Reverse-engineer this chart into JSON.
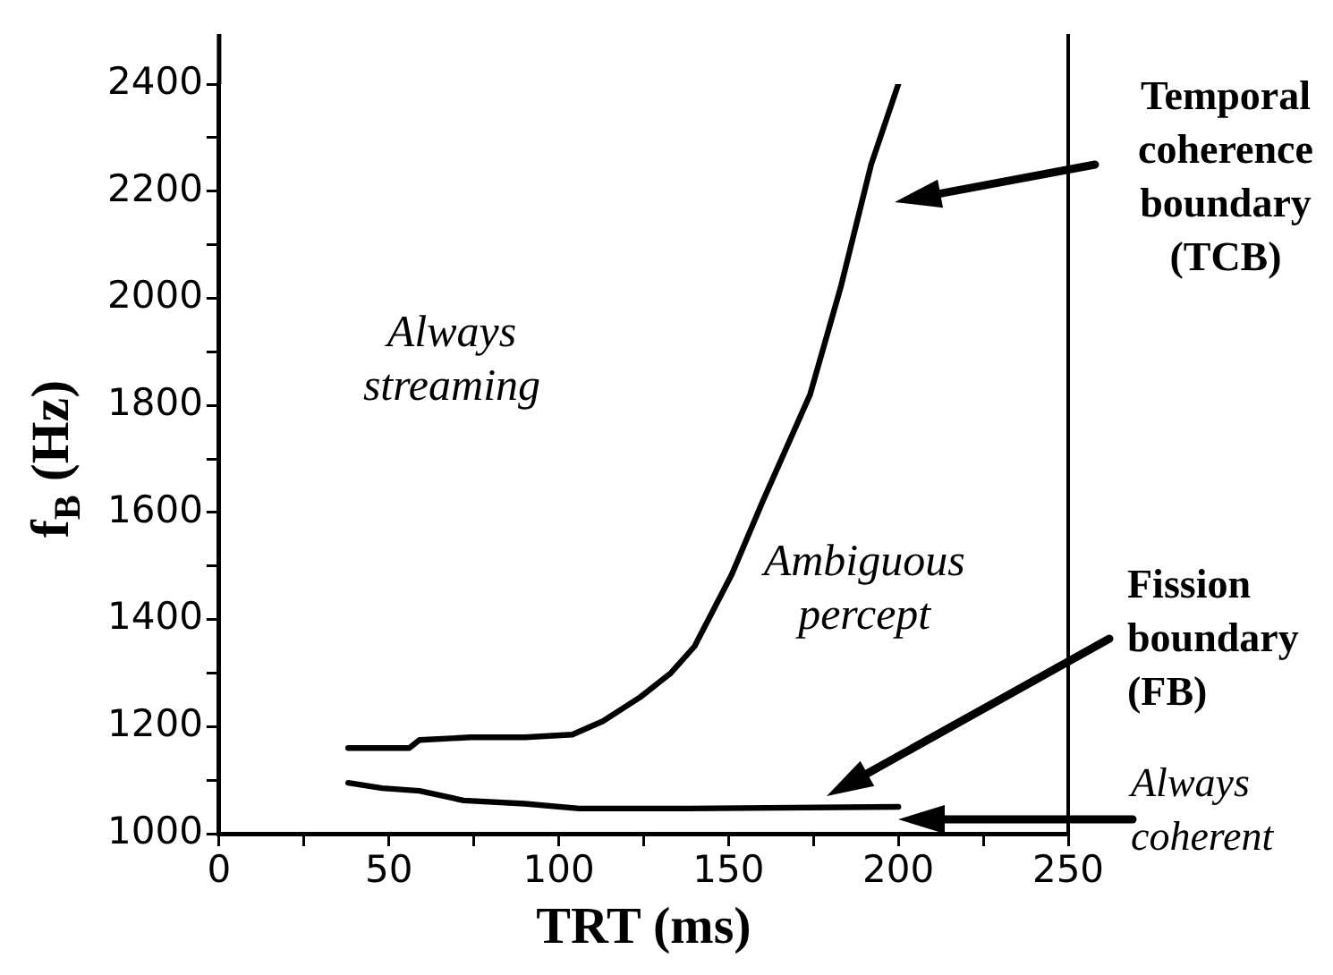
{
  "chart_data": {
    "type": "line",
    "xlabel": "TRT (ms)",
    "ylabel": "f$_{B}$ (Hz)",
    "xlim": [
      0,
      250
    ],
    "ylim": [
      1000,
      2400
    ],
    "xticks": [
      0,
      {
        "value": 25,
        "label": null
      },
      50,
      {
        "value": 75,
        "label": null
      },
      100,
      {
        "value": 125,
        "label": null
      },
      150,
      {
        "value": 175,
        "label": null
      },
      200,
      {
        "value": 225,
        "label": null
      },
      250
    ],
    "yticks": [
      1000,
      {
        "value": 1100,
        "label": null
      },
      1200,
      {
        "value": 1300,
        "label": null
      },
      1400,
      {
        "value": 1500,
        "label": null
      },
      1600,
      {
        "value": 1700,
        "label": null
      },
      1800,
      {
        "value": 1900,
        "label": null
      },
      2000,
      {
        "value": 2100,
        "label": null
      },
      2200,
      {
        "value": 2300,
        "label": null
      },
      2400
    ],
    "marker": "none",
    "line_style": "solid",
    "legend": false,
    "series": [
      {
        "color": "#000000",
        "x": [
          38,
          56,
          59,
          74,
          90,
          104,
          113,
          124,
          133,
          140,
          151,
          160,
          174,
          183,
          192,
          200
        ],
        "values": [
          1160,
          1160,
          1175,
          1180,
          1180,
          1185,
          1210,
          1255,
          1300,
          1350,
          1485,
          1620,
          1820,
          2020,
          2250,
          2400
        ]
      },
      {
        "color": "#000000",
        "x": [
          38,
          48,
          59,
          72,
          90,
          106,
          138,
          200
        ],
        "values": [
          1095,
          1085,
          1080,
          1062,
          1056,
          1047,
          1047,
          1050
        ]
      }
    ],
    "annotations": [
      "Always\nstreaming",
      "Ambiguous\npercept",
      "Temporal\ncoherence\nboundary\n(TCB)",
      "Fission\nboundary\n(FB)",
      "Always\ncoherent"
    ]
  }
}
